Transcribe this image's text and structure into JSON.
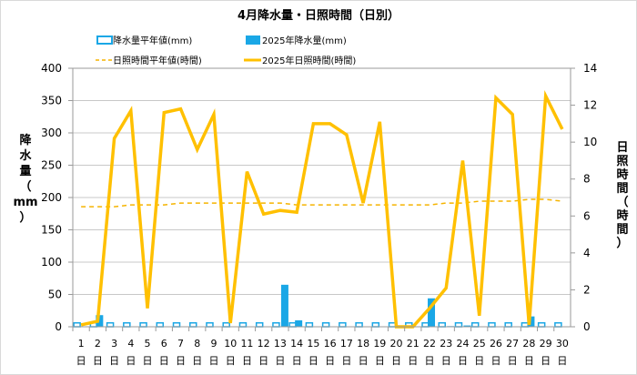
{
  "chart_data": {
    "type": "bar+line",
    "title": "4月降水量・日照時間（日別）",
    "legend": [
      {
        "label": "降水量平年値(mm)",
        "kind": "hollow-bar",
        "color": "#1aa7e6"
      },
      {
        "label": "2025年降水量(mm)",
        "kind": "bar",
        "color": "#1aa7e6"
      },
      {
        "label": "日照時間平年値(時間)",
        "kind": "dashed-line",
        "color": "#f5b400"
      },
      {
        "label": "2025年日照時間(時間)",
        "kind": "line",
        "color": "#ffc000"
      }
    ],
    "y_left_label": [
      "降",
      "水",
      "量",
      "（",
      "mm",
      "）"
    ],
    "y_right_label": [
      "日",
      "照",
      "時",
      "間",
      "（",
      "時",
      "間",
      "）"
    ],
    "y_left": {
      "min": 0,
      "max": 400,
      "ticks": [
        "0",
        "50",
        "100",
        "150",
        "200",
        "250",
        "300",
        "350",
        "400"
      ]
    },
    "y_right": {
      "min": 0,
      "max": 14,
      "ticks": [
        "0",
        "2",
        "4",
        "6",
        "8",
        "10",
        "12",
        "14"
      ]
    },
    "x_day_labels": [
      "1",
      "2",
      "3",
      "4",
      "5",
      "6",
      "7",
      "8",
      "9",
      "10",
      "11",
      "12",
      "13",
      "14",
      "15",
      "16",
      "17",
      "18",
      "19",
      "20",
      "21",
      "22",
      "23",
      "24",
      "25",
      "26",
      "27",
      "28",
      "29",
      "30"
    ],
    "x_unit": "日",
    "precip_normal": [
      6,
      6,
      6,
      6,
      6,
      6,
      6,
      6,
      6,
      6,
      6,
      6,
      6,
      6,
      6,
      6,
      6,
      6,
      6,
      6,
      6,
      6,
      6,
      6,
      6,
      6,
      6,
      6,
      6,
      6
    ],
    "precip_2025": [
      0,
      18,
      0,
      0,
      0,
      0,
      0,
      0,
      0,
      0,
      0,
      0,
      65,
      10,
      0,
      0,
      0,
      0,
      0,
      0,
      0,
      44,
      1,
      2,
      0,
      0,
      0,
      16,
      0,
      0
    ],
    "sunshine_normal": [
      6.5,
      6.5,
      6.5,
      6.6,
      6.6,
      6.6,
      6.7,
      6.7,
      6.7,
      6.7,
      6.7,
      6.7,
      6.7,
      6.6,
      6.6,
      6.6,
      6.6,
      6.6,
      6.6,
      6.6,
      6.6,
      6.6,
      6.7,
      6.7,
      6.8,
      6.8,
      6.8,
      6.9,
      6.9,
      6.8
    ],
    "sunshine_2025": [
      0.1,
      0.3,
      10.2,
      11.7,
      1.0,
      11.6,
      11.8,
      9.6,
      11.5,
      0.2,
      8.4,
      6.1,
      6.3,
      6.2,
      11.0,
      11.0,
      10.4,
      6.7,
      11.1,
      0,
      0,
      1.0,
      2.1,
      9.0,
      0.6,
      12.4,
      11.5,
      0.1,
      12.5,
      10.7
    ],
    "colors": {
      "bar": "#1aa7e6",
      "sun_line": "#ffc000",
      "sun_normal": "#f5b400",
      "grid": "#c8c8c8"
    },
    "grid": true,
    "legend_position": "top"
  }
}
